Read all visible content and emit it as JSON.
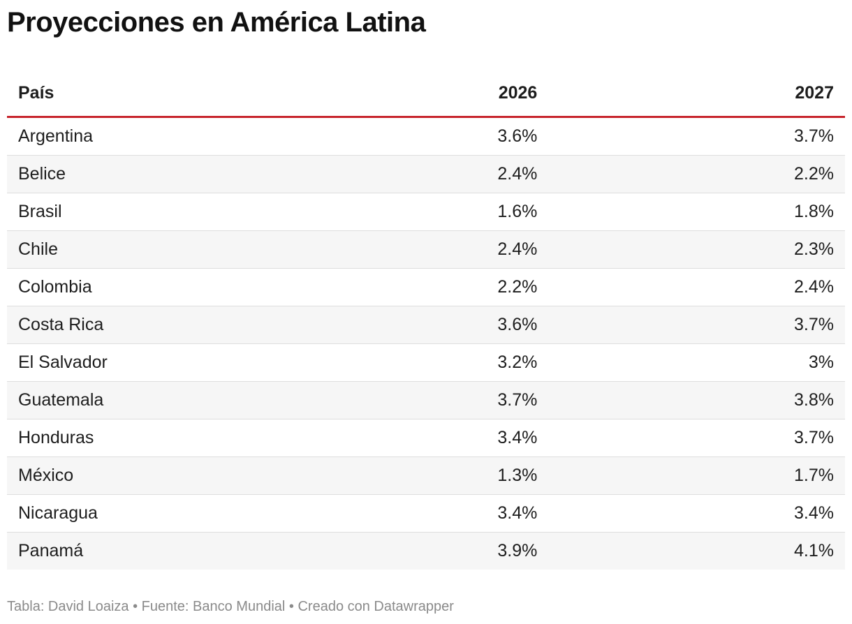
{
  "header": {
    "title": "Proyecciones en América Latina"
  },
  "table": {
    "columns": [
      "País",
      "2026",
      "2027"
    ],
    "rows": [
      [
        "Argentina",
        "3.6%",
        "3.7%"
      ],
      [
        "Belice",
        "2.4%",
        "2.2%"
      ],
      [
        "Brasil",
        "1.6%",
        "1.8%"
      ],
      [
        "Chile",
        "2.4%",
        "2.3%"
      ],
      [
        "Colombia",
        "2.2%",
        "2.4%"
      ],
      [
        "Costa Rica",
        "3.6%",
        "3.7%"
      ],
      [
        "El Salvador",
        "3.2%",
        "3%"
      ],
      [
        "Guatemala",
        "3.7%",
        "3.8%"
      ],
      [
        "Honduras",
        "3.4%",
        "3.7%"
      ],
      [
        "México",
        "1.3%",
        "1.7%"
      ],
      [
        "Nicaragua",
        "3.4%",
        "3.4%"
      ],
      [
        "Panamá",
        "3.9%",
        "4.1%"
      ]
    ]
  },
  "footer": {
    "note": "Tabla: David Loaiza • Fuente: Banco Mundial • Creado con Datawrapper"
  }
}
